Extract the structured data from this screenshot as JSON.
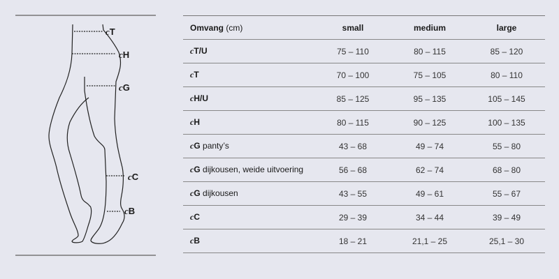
{
  "illustration": {
    "labels": [
      {
        "prefix": "c",
        "code": "T"
      },
      {
        "prefix": "c",
        "code": "H"
      },
      {
        "prefix": "c",
        "code": "G"
      },
      {
        "prefix": "c",
        "code": "C"
      },
      {
        "prefix": "c",
        "code": "B"
      }
    ]
  },
  "table": {
    "header": {
      "label": "Omvang",
      "unit": "(cm)",
      "columns": [
        "small",
        "medium",
        "large"
      ]
    },
    "rows": [
      {
        "prefix": "c",
        "code": "T/U",
        "note": "",
        "values": [
          "75 – 110",
          "80 – 115",
          "85 – 120"
        ]
      },
      {
        "prefix": "c",
        "code": "T",
        "note": "",
        "values": [
          "70 – 100",
          "75 – 105",
          "80 – 110"
        ]
      },
      {
        "prefix": "c",
        "code": "H/U",
        "note": "",
        "values": [
          "85 – 125",
          "95 – 135",
          "105 – 145"
        ]
      },
      {
        "prefix": "c",
        "code": "H",
        "note": "",
        "values": [
          "80 – 115",
          "90 – 125",
          "100 – 135"
        ]
      },
      {
        "prefix": "c",
        "code": "G",
        "note": "panty’s",
        "values": [
          "43 – 68",
          "49 – 74",
          "55 – 80"
        ]
      },
      {
        "prefix": "c",
        "code": "G",
        "note": "dijkousen, weide uitvoering",
        "values": [
          "56 – 68",
          "62 – 74",
          "68 – 80"
        ]
      },
      {
        "prefix": "c",
        "code": "G",
        "note": "dijkousen",
        "values": [
          "43 – 55",
          "49 – 61",
          "55 – 67"
        ]
      },
      {
        "prefix": "c",
        "code": "C",
        "note": "",
        "values": [
          "29 – 39",
          "34 – 44",
          "39 – 49"
        ]
      },
      {
        "prefix": "c",
        "code": "B",
        "note": "",
        "values": [
          "18 – 21",
          "21,1 – 25",
          "25,1 – 30"
        ]
      }
    ]
  }
}
